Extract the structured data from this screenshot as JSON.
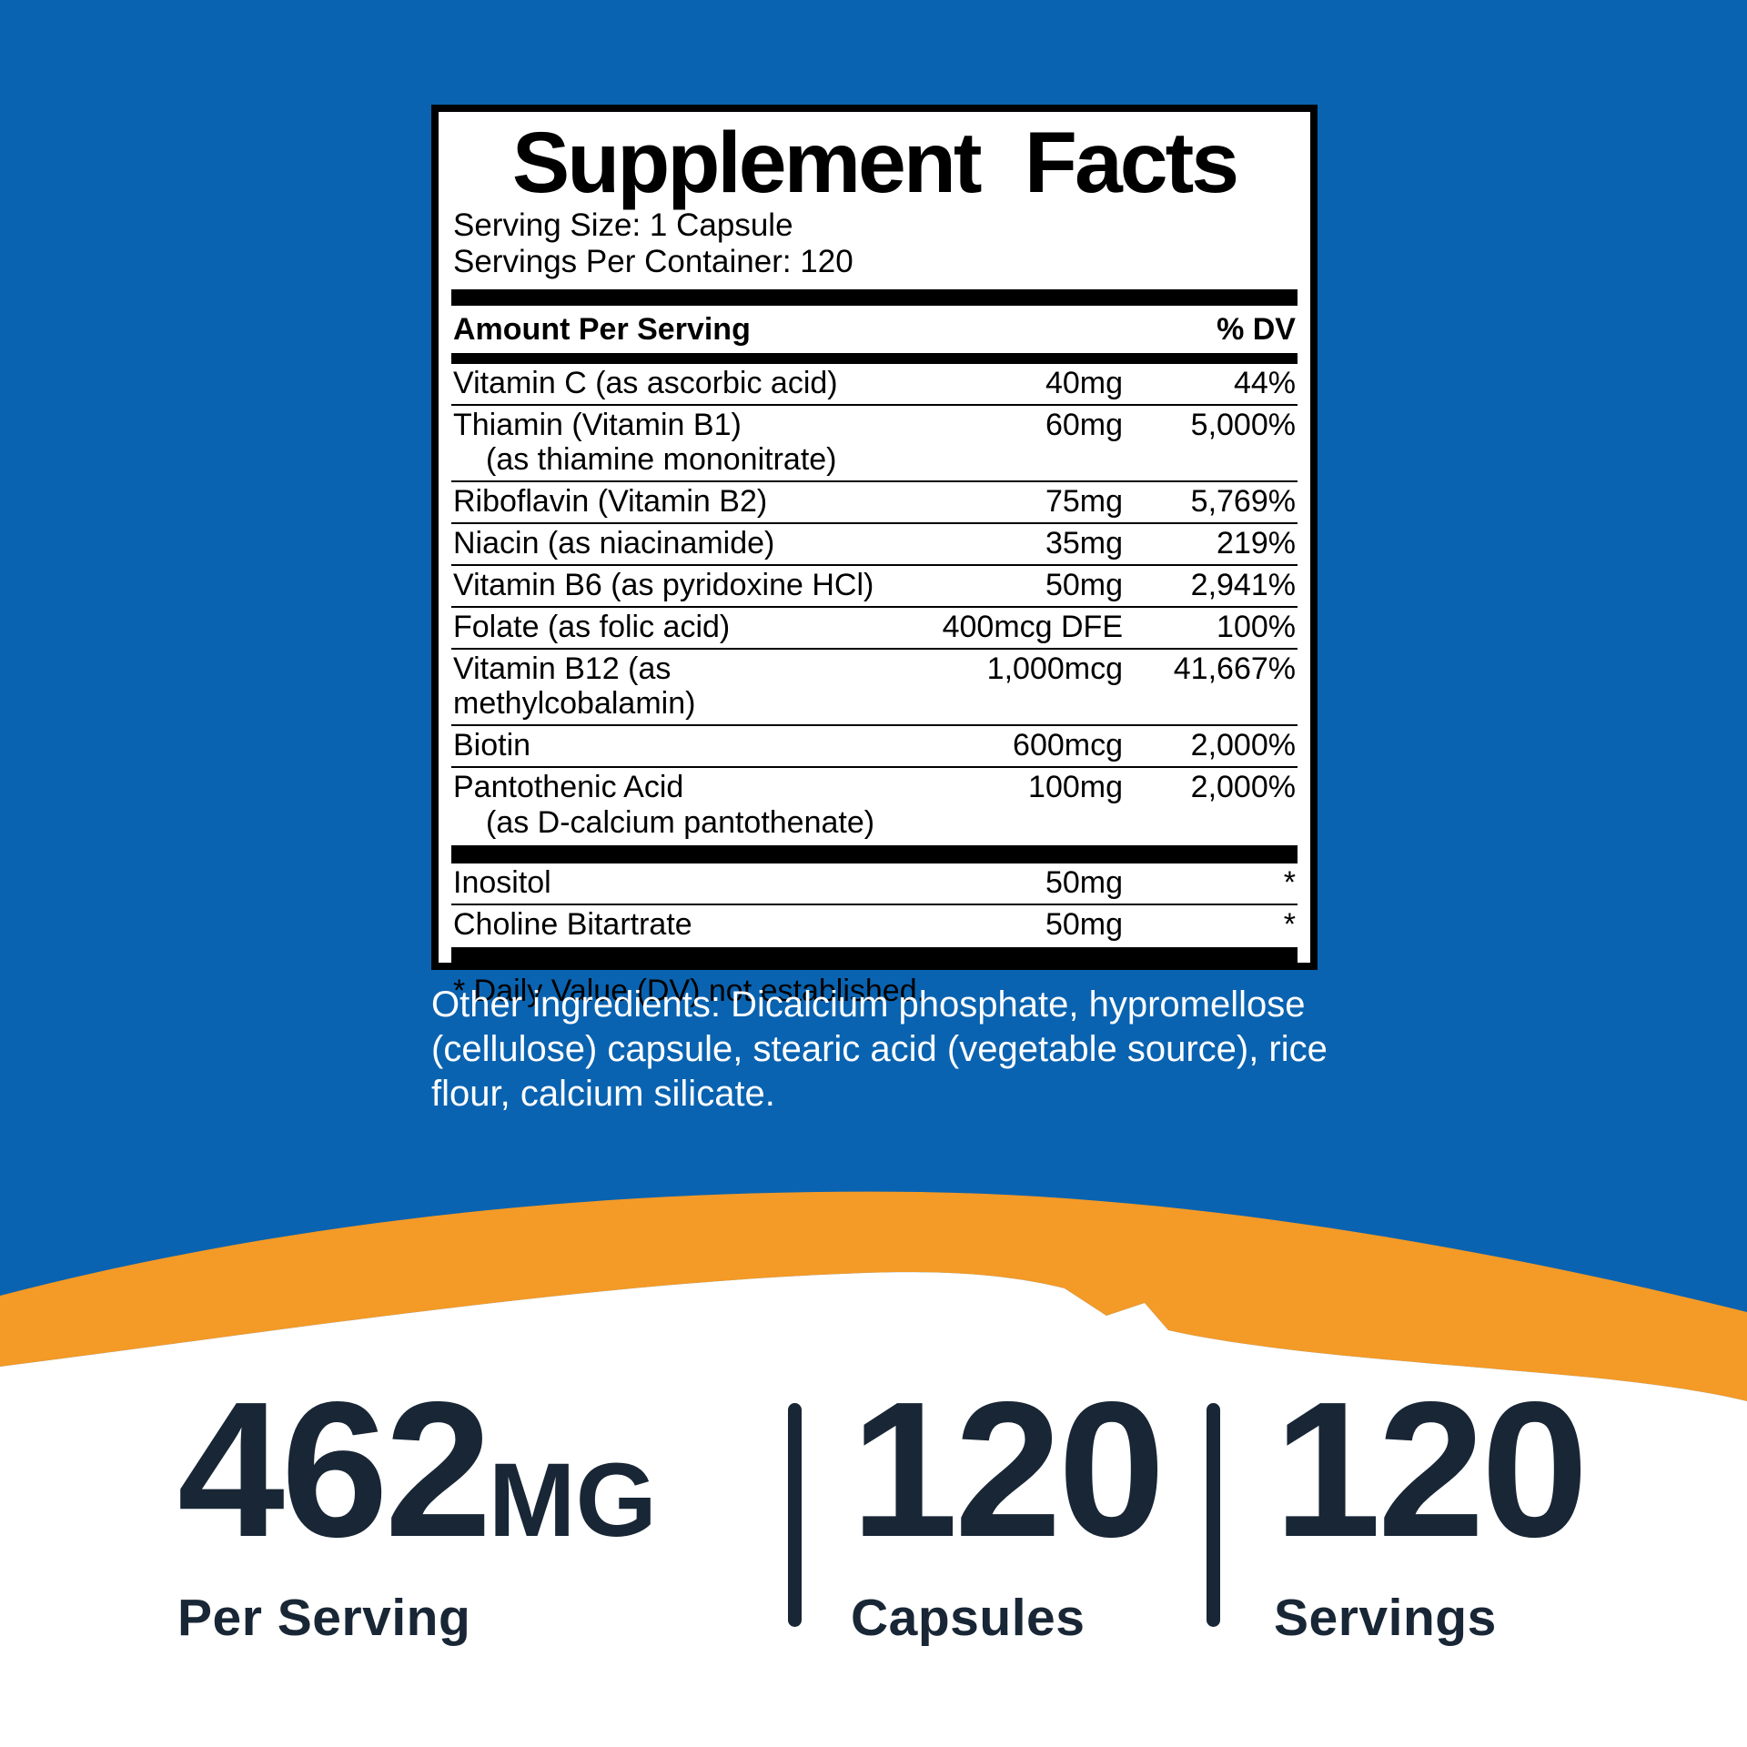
{
  "colors": {
    "background_blue": "#0a63b0",
    "swoosh_orange": "#f39a27",
    "footer_white": "#ffffff",
    "text_navy": "#182635",
    "panel_black": "#000000"
  },
  "panel": {
    "title": "Supplement Facts",
    "serving_size": "Serving Size: 1 Capsule",
    "servings_per_container": "Servings Per Container: 120",
    "amount_header": "Amount Per Serving",
    "dv_header": "% DV",
    "rows": [
      {
        "name": "Vitamin C (as ascorbic acid)",
        "amount": "40mg",
        "dv": "44%"
      },
      {
        "name": "Thiamin (Vitamin B1)",
        "sub": "(as thiamine mononitrate)",
        "amount": "60mg",
        "dv": "5,000%"
      },
      {
        "name": "Riboflavin (Vitamin B2)",
        "amount": "75mg",
        "dv": "5,769%"
      },
      {
        "name": "Niacin (as niacinamide)",
        "amount": "35mg",
        "dv": "219%"
      },
      {
        "name": "Vitamin B6 (as pyridoxine HCl)",
        "amount": "50mg",
        "dv": "2,941%"
      },
      {
        "name": "Folate (as folic acid)",
        "amount": "400mcg DFE",
        "dv": "100%"
      },
      {
        "name": "Vitamin B12 (as methylcobalamin)",
        "amount": "1,000mcg",
        "dv": "41,667%"
      },
      {
        "name": "Biotin",
        "amount": "600mcg",
        "dv": "2,000%"
      },
      {
        "name": "Pantothenic Acid",
        "sub": "(as D-calcium pantothenate)",
        "amount": "100mg",
        "dv": "2,000%"
      }
    ],
    "extra_rows": [
      {
        "name": "Inositol",
        "amount": "50mg",
        "dv": "*"
      },
      {
        "name": "Choline Bitartrate",
        "amount": "50mg",
        "dv": "*"
      }
    ],
    "footnote": "* Daily Value (DV) not established."
  },
  "other_ingredients_lines": [
    "Other ingredients: Dicalcium phosphate, hypromellose",
    "(cellulose) capsule, stearic acid (vegetable source), rice",
    "flour, calcium silicate."
  ],
  "stats": [
    {
      "value": "462",
      "unit": "MG",
      "label": "Per Serving"
    },
    {
      "value": "120",
      "unit": "",
      "label": "Capsules"
    },
    {
      "value": "120",
      "unit": "",
      "label": "Servings"
    }
  ]
}
